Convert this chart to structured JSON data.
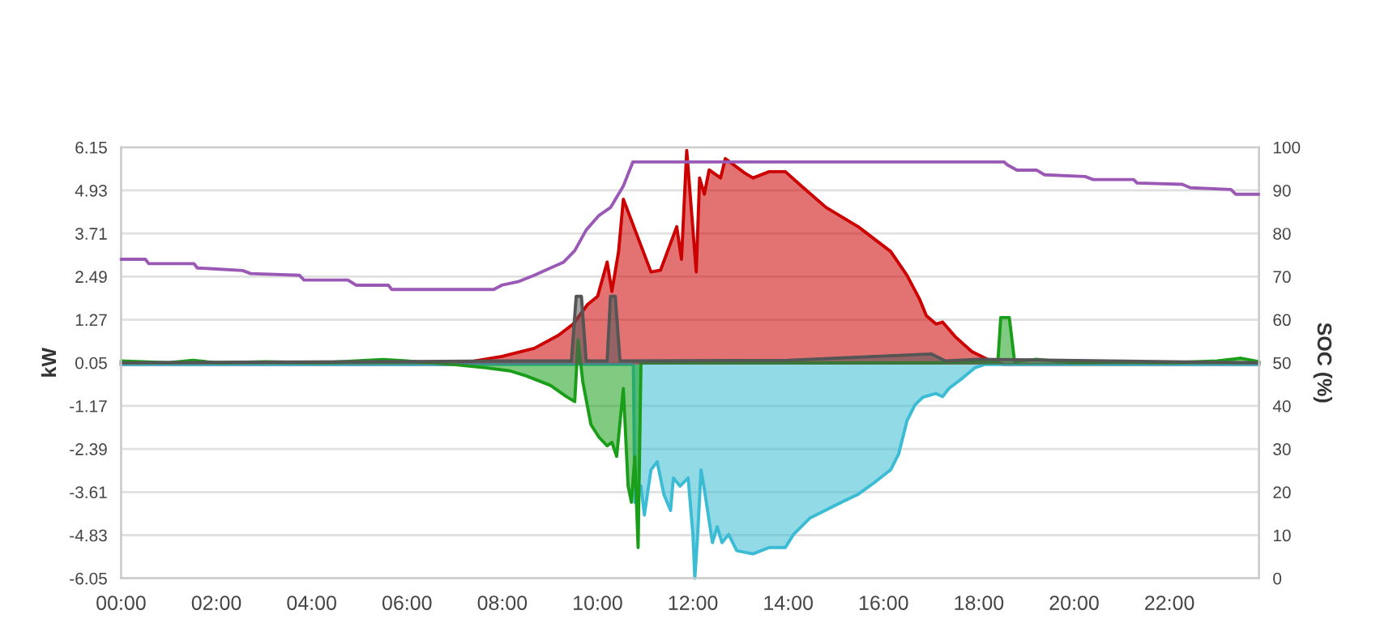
{
  "chart_data": {
    "type": "area",
    "ylabel": "kW",
    "y2label": "SOC (%)",
    "grid": "y",
    "xlim": [
      0,
      23.88
    ],
    "xticks": [
      {
        "value": 0,
        "label": "00:00"
      },
      {
        "value": 2,
        "label": "02:00"
      },
      {
        "value": 4,
        "label": "04:00"
      },
      {
        "value": 6,
        "label": "06:00"
      },
      {
        "value": 8,
        "label": "08:00"
      },
      {
        "value": 10,
        "label": "10:00"
      },
      {
        "value": 12,
        "label": "12:00"
      },
      {
        "value": 14,
        "label": "14:00"
      },
      {
        "value": 16,
        "label": "16:00"
      },
      {
        "value": 18,
        "label": "18:00"
      },
      {
        "value": 20,
        "label": "20:00"
      },
      {
        "value": 22,
        "label": "22:00"
      }
    ],
    "ylim": [
      -6.05,
      6.15
    ],
    "yticks": [
      -6.05,
      -4.83,
      -3.61,
      -2.39,
      -1.17,
      0.05,
      1.27,
      2.49,
      3.71,
      4.93,
      6.15
    ],
    "y2lim": [
      0,
      100
    ],
    "y2ticks": [
      0,
      10,
      20,
      30,
      40,
      50,
      60,
      70,
      80,
      90,
      100
    ],
    "series": [
      {
        "color": "#cc0000",
        "x": [
          0,
          6.97,
          7.99,
          8.67,
          9.18,
          9.49,
          9.79,
          10.0,
          10.2,
          10.3,
          10.44,
          10.54,
          11.12,
          11.32,
          11.66,
          11.76,
          11.87,
          12.07,
          12.14,
          12.24,
          12.34,
          12.58,
          12.68,
          13.09,
          13.26,
          13.6,
          13.94,
          14.28,
          14.79,
          15.47,
          16.15,
          16.49,
          16.76,
          16.9,
          17.1,
          17.24,
          17.51,
          17.85,
          18.19,
          18.53,
          23.88
        ],
        "values": [
          0,
          0,
          0.23,
          0.46,
          0.83,
          1.15,
          1.7,
          1.93,
          2.9,
          2.07,
          3.2,
          4.68,
          2.62,
          2.67,
          3.9,
          2.98,
          6.06,
          2.62,
          5.28,
          4.82,
          5.51,
          5.28,
          5.83,
          5.42,
          5.28,
          5.46,
          5.46,
          5.05,
          4.45,
          3.9,
          3.2,
          2.53,
          1.84,
          1.38,
          1.15,
          1.2,
          0.78,
          0.37,
          0.14,
          0,
          0
        ]
      },
      {
        "color": "#3bbbd4",
        "x": [
          0,
          10.75,
          10.78,
          10.91,
          10.98,
          11.12,
          11.25,
          11.39,
          11.53,
          11.59,
          11.73,
          11.9,
          12.0,
          12.04,
          12.1,
          12.17,
          12.24,
          12.41,
          12.51,
          12.61,
          12.75,
          12.92,
          13.26,
          13.6,
          13.94,
          14.11,
          14.45,
          14.79,
          15.13,
          15.47,
          15.81,
          16.15,
          16.32,
          16.49,
          16.66,
          16.83,
          17.1,
          17.24,
          17.37,
          17.68,
          17.92,
          18.12,
          23.88
        ],
        "values": [
          0,
          0,
          -3.9,
          -3.44,
          -4.26,
          -2.98,
          -2.75,
          -3.67,
          -4.13,
          -3.21,
          -3.44,
          -3.21,
          -4.81,
          -6.05,
          -4.81,
          -2.98,
          -3.53,
          -5.04,
          -4.59,
          -5.04,
          -4.81,
          -5.27,
          -5.36,
          -5.18,
          -5.18,
          -4.81,
          -4.35,
          -4.12,
          -3.89,
          -3.67,
          -3.34,
          -2.98,
          -2.52,
          -1.6,
          -1.14,
          -0.92,
          -0.82,
          -0.91,
          -0.68,
          -0.36,
          -0.09,
          0,
          0
        ]
      },
      {
        "color": "#1a9e1a",
        "x": [
          0,
          1.0,
          1.5,
          2.0,
          3.0,
          4.2,
          5.5,
          6.0,
          6.97,
          7.65,
          8.16,
          8.5,
          9.01,
          9.35,
          9.52,
          9.59,
          9.69,
          9.86,
          10.03,
          10.2,
          10.3,
          10.4,
          10.54,
          10.64,
          10.71,
          10.78,
          10.85,
          10.91,
          11.5,
          13.0,
          15.0,
          17.0,
          18.4,
          18.46,
          18.64,
          18.75,
          19.2,
          20.0,
          21.0,
          22.0,
          23.0,
          23.5,
          23.88
        ],
        "values": [
          0.1,
          0.05,
          0.12,
          0.05,
          0.08,
          0.05,
          0.14,
          0.1,
          0,
          -0.09,
          -0.18,
          -0.32,
          -0.59,
          -0.91,
          -1.05,
          0.69,
          -0.5,
          -1.7,
          -2.06,
          -2.3,
          -2.2,
          -2.6,
          -0.68,
          -3.44,
          -3.9,
          -2.61,
          -5.18,
          0.05,
          0.05,
          0.05,
          0.05,
          0.05,
          0.1,
          1.33,
          1.33,
          0.08,
          0.15,
          0.05,
          0.08,
          0.05,
          0.1,
          0.18,
          0.08
        ]
      },
      {
        "color": "#555555",
        "x": [
          0,
          5,
          8,
          9.45,
          9.55,
          9.66,
          9.76,
          10.2,
          10.27,
          10.37,
          10.47,
          14,
          17.0,
          17.3,
          18.0,
          23.88
        ],
        "values": [
          0.05,
          0.08,
          0.1,
          0.1,
          1.93,
          1.93,
          0.1,
          0.1,
          1.93,
          1.93,
          0.1,
          0.12,
          0.3,
          0.1,
          0.15,
          0.05
        ]
      },
      {
        "type": "line",
        "axis": "y2",
        "color": "#9b59b6",
        "x": [
          0,
          0.51,
          0.58,
          1.53,
          1.6,
          2.55,
          2.72,
          3.74,
          3.84,
          4.76,
          4.93,
          5.61,
          5.68,
          7.82,
          7.99,
          8.33,
          8.67,
          9.01,
          9.28,
          9.52,
          9.76,
          10.03,
          10.27,
          10.54,
          10.74,
          18.53,
          18.6,
          18.8,
          19.21,
          19.38,
          20.23,
          20.4,
          21.25,
          21.32,
          22.27,
          22.44,
          23.29,
          23.39,
          23.87
        ],
        "values": [
          74,
          74,
          73,
          73,
          72,
          71.4,
          70.7,
          70.3,
          69.2,
          69.2,
          68,
          68,
          67,
          67,
          68,
          68.8,
          70.3,
          72,
          73.3,
          76,
          80.8,
          84.2,
          86,
          91,
          96.6,
          96.6,
          95.9,
          94.7,
          94.7,
          93.6,
          93.2,
          92.5,
          92.5,
          91.7,
          91.4,
          90.6,
          90.2,
          89.1,
          89.1
        ]
      }
    ]
  }
}
